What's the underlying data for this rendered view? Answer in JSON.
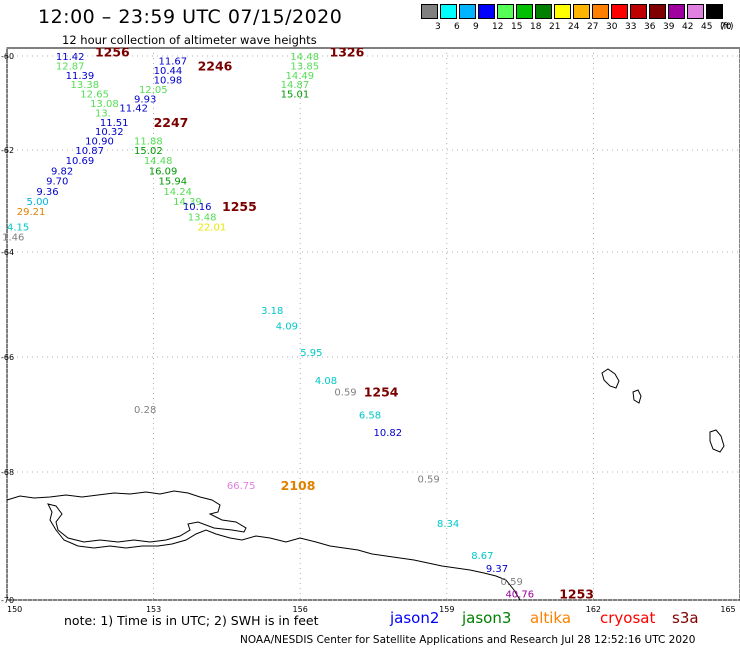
{
  "title": "12:00 – 23:59 UTC 07/15/2020",
  "subtitle": "12 hour collection of altimeter wave heights",
  "legend": {
    "colors": [
      "#808080",
      "#00ffff",
      "#00b4ff",
      "#0000ff",
      "#55ff55",
      "#00c000",
      "#008000",
      "#ffff00",
      "#ffb400",
      "#ff8000",
      "#ff0000",
      "#c00000",
      "#800000",
      "#a000a0",
      "#e080e0",
      "#000000"
    ],
    "labels": [
      "3",
      "6",
      "9",
      "12",
      "15",
      "18",
      "21",
      "24",
      "27",
      "30",
      "33",
      "36",
      "39",
      "42",
      "45",
      "70"
    ],
    "unit": "(ft)"
  },
  "axes": {
    "lon_ticks": [
      {
        "lon": 150,
        "label": "150"
      },
      {
        "lon": 153,
        "label": "153"
      },
      {
        "lon": 156,
        "label": "156"
      },
      {
        "lon": 159,
        "label": "159"
      },
      {
        "lon": 162,
        "label": "162"
      },
      {
        "lon": 165,
        "label": "165"
      }
    ],
    "lat_ticks": [
      {
        "lat": -60,
        "label": "-60"
      },
      {
        "lat": -62,
        "label": "-62"
      },
      {
        "lat": -64,
        "label": "-64"
      },
      {
        "lat": -66,
        "label": "-66"
      },
      {
        "lat": -68,
        "label": "-68"
      },
      {
        "lat": -70,
        "label": "-70"
      }
    ]
  },
  "observations": [
    {
      "lon": 151.0,
      "lat": -60.0,
      "text": "11.42",
      "color": "#0000cc"
    },
    {
      "lon": 151.0,
      "lat": -60.2,
      "text": "12.87",
      "color": "#55dd55"
    },
    {
      "lon": 151.2,
      "lat": -60.4,
      "text": "11.39",
      "color": "#0000cc"
    },
    {
      "lon": 151.3,
      "lat": -60.6,
      "text": "13.38",
      "color": "#55dd55"
    },
    {
      "lon": 151.5,
      "lat": -60.8,
      "text": "12.65",
      "color": "#55dd55"
    },
    {
      "lon": 151.7,
      "lat": -61.0,
      "text": "13.08",
      "color": "#55dd55"
    },
    {
      "lon": 151.8,
      "lat": -61.2,
      "text": "13.",
      "color": "#55dd55"
    },
    {
      "lon": 151.9,
      "lat": -61.4,
      "text": "11.51",
      "color": "#0000cc"
    },
    {
      "lon": 151.8,
      "lat": -61.6,
      "text": "10.32",
      "color": "#0000cc"
    },
    {
      "lon": 151.6,
      "lat": -61.8,
      "text": "10.90",
      "color": "#0000cc"
    },
    {
      "lon": 151.4,
      "lat": -62.0,
      "text": "10.87",
      "color": "#0000cc"
    },
    {
      "lon": 151.2,
      "lat": -62.2,
      "text": "10.69",
      "color": "#0000cc"
    },
    {
      "lon": 150.9,
      "lat": -62.4,
      "text": "9.82",
      "color": "#0000cc"
    },
    {
      "lon": 150.8,
      "lat": -62.6,
      "text": "9.70",
      "color": "#0000cc"
    },
    {
      "lon": 150.6,
      "lat": -62.8,
      "text": "9.36",
      "color": "#0000cc"
    },
    {
      "lon": 150.4,
      "lat": -63.0,
      "text": "5.00",
      "color": "#00b4e0"
    },
    {
      "lon": 150.2,
      "lat": -63.2,
      "text": "29.21",
      "color": "#e08000"
    },
    {
      "lon": 150.0,
      "lat": -63.5,
      "text": "4.15",
      "color": "#00c8c8"
    },
    {
      "lon": 149.9,
      "lat": -63.7,
      "text": "1.46",
      "color": "#808080"
    },
    {
      "lon": 153.1,
      "lat": -60.1,
      "text": "11.67",
      "color": "#0000cc"
    },
    {
      "lon": 153.0,
      "lat": -60.3,
      "text": "10.44",
      "color": "#0000cc"
    },
    {
      "lon": 153.0,
      "lat": -60.5,
      "text": "10.98",
      "color": "#0000cc"
    },
    {
      "lon": 152.7,
      "lat": -60.7,
      "text": "12.05",
      "color": "#55dd55"
    },
    {
      "lon": 152.6,
      "lat": -60.9,
      "text": "9.93",
      "color": "#0000cc"
    },
    {
      "lon": 152.3,
      "lat": -61.1,
      "text": "11.42",
      "color": "#0000cc"
    },
    {
      "lon": 152.6,
      "lat": -61.8,
      "text": "11.88",
      "color": "#55dd55"
    },
    {
      "lon": 152.6,
      "lat": -62.0,
      "text": "15.02",
      "color": "#009900"
    },
    {
      "lon": 152.8,
      "lat": -62.2,
      "text": "14.48",
      "color": "#55dd55"
    },
    {
      "lon": 152.9,
      "lat": -62.4,
      "text": "16.09",
      "color": "#009900"
    },
    {
      "lon": 153.1,
      "lat": -62.6,
      "text": "15.94",
      "color": "#009900"
    },
    {
      "lon": 153.2,
      "lat": -62.8,
      "text": "14.24",
      "color": "#55dd55"
    },
    {
      "lon": 153.4,
      "lat": -63.0,
      "text": "14.39",
      "color": "#55dd55"
    },
    {
      "lon": 153.6,
      "lat": -63.1,
      "text": "10.16",
      "color": "#0000cc"
    },
    {
      "lon": 153.7,
      "lat": -63.3,
      "text": "13.48",
      "color": "#55dd55"
    },
    {
      "lon": 153.9,
      "lat": -63.5,
      "text": "22.01",
      "color": "#e8e800"
    },
    {
      "lon": 155.8,
      "lat": -60.0,
      "text": "14.48",
      "color": "#55dd55"
    },
    {
      "lon": 155.8,
      "lat": -60.2,
      "text": "13.85",
      "color": "#55dd55"
    },
    {
      "lon": 155.7,
      "lat": -60.4,
      "text": "14.49",
      "color": "#55dd55"
    },
    {
      "lon": 155.6,
      "lat": -60.6,
      "text": "14.87",
      "color": "#55dd55"
    },
    {
      "lon": 155.6,
      "lat": -60.8,
      "text": "15.01",
      "color": "#009900"
    },
    {
      "lon": 155.2,
      "lat": -65.1,
      "text": "3.18",
      "color": "#00c8c8"
    },
    {
      "lon": 155.5,
      "lat": -65.4,
      "text": "4.09",
      "color": "#00c8c8"
    },
    {
      "lon": 156.0,
      "lat": -65.9,
      "text": "5.95",
      "color": "#00c8c8"
    },
    {
      "lon": 156.3,
      "lat": -66.4,
      "text": "4.08",
      "color": "#00c8c8"
    },
    {
      "lon": 156.7,
      "lat": -66.6,
      "text": "0.59",
      "color": "#808080"
    },
    {
      "lon": 152.6,
      "lat": -66.9,
      "text": "0.28",
      "color": "#808080"
    },
    {
      "lon": 157.2,
      "lat": -67.0,
      "text": "6.58",
      "color": "#00c8c8"
    },
    {
      "lon": 157.5,
      "lat": -67.3,
      "text": "10.82",
      "color": "#0000cc"
    },
    {
      "lon": 154.5,
      "lat": -68.2,
      "text": "66.75",
      "color": "#e080e0"
    },
    {
      "lon": 158.4,
      "lat": -68.1,
      "text": "0.59",
      "color": "#808080"
    },
    {
      "lon": 158.8,
      "lat": -68.8,
      "text": "8.34",
      "color": "#00c8c8"
    },
    {
      "lon": 159.5,
      "lat": -69.3,
      "text": "8.67",
      "color": "#00c8c8"
    },
    {
      "lon": 159.8,
      "lat": -69.5,
      "text": "9.37",
      "color": "#0000cc"
    },
    {
      "lon": 160.1,
      "lat": -69.7,
      "text": "0.59",
      "color": "#808080"
    },
    {
      "lon": 160.2,
      "lat": -69.9,
      "text": "40.76",
      "color": "#a000a0"
    }
  ],
  "pass_times": [
    {
      "lon": 151.8,
      "lat": -59.9,
      "text": "1256",
      "color": "#7a0000"
    },
    {
      "lon": 153.9,
      "lat": -60.2,
      "text": "2246",
      "color": "#7a0000"
    },
    {
      "lon": 156.6,
      "lat": -59.9,
      "text": "1326",
      "color": "#7a0000"
    },
    {
      "lon": 153.0,
      "lat": -61.4,
      "text": "2247",
      "color": "#7a0000"
    },
    {
      "lon": 154.4,
      "lat": -63.1,
      "text": "1255",
      "color": "#7a0000"
    },
    {
      "lon": 157.3,
      "lat": -66.6,
      "text": "1254",
      "color": "#7a0000"
    },
    {
      "lon": 155.6,
      "lat": -68.2,
      "text": "2108",
      "color": "#e08000"
    },
    {
      "lon": 161.3,
      "lat": -69.9,
      "text": "1253",
      "color": "#7a0000"
    }
  ],
  "note": "note: 1) Time is in UTC; 2) SWH is in feet",
  "satellites": [
    {
      "name": "jason2",
      "color": "#0000ff"
    },
    {
      "name": "jason3",
      "color": "#008000"
    },
    {
      "name": "altika",
      "color": "#ff8000"
    },
    {
      "name": "cryosat",
      "color": "#ff0000"
    },
    {
      "name": "s3a",
      "color": "#800000"
    }
  ],
  "credit": "NOAA/NESDIS Center for Satellite Applications and Research   Jul 28 12:52:16 UTC 2020"
}
